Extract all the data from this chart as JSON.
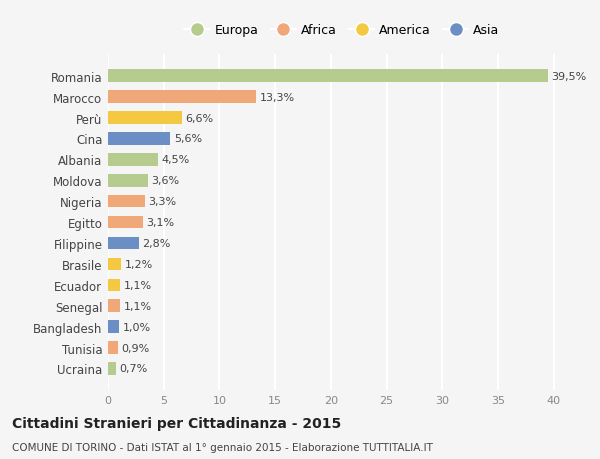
{
  "countries": [
    "Romania",
    "Marocco",
    "Perù",
    "Cina",
    "Albania",
    "Moldova",
    "Nigeria",
    "Egitto",
    "Filippine",
    "Brasile",
    "Ecuador",
    "Senegal",
    "Bangladesh",
    "Tunisia",
    "Ucraina"
  ],
  "values": [
    39.5,
    13.3,
    6.6,
    5.6,
    4.5,
    3.6,
    3.3,
    3.1,
    2.8,
    1.2,
    1.1,
    1.1,
    1.0,
    0.9,
    0.7
  ],
  "labels": [
    "39,5%",
    "13,3%",
    "6,6%",
    "5,6%",
    "4,5%",
    "3,6%",
    "3,3%",
    "3,1%",
    "2,8%",
    "1,2%",
    "1,1%",
    "1,1%",
    "1,0%",
    "0,9%",
    "0,7%"
  ],
  "continents": [
    "Europa",
    "Africa",
    "America",
    "Asia",
    "Europa",
    "Europa",
    "Africa",
    "Africa",
    "Asia",
    "America",
    "America",
    "Africa",
    "Asia",
    "Africa",
    "Europa"
  ],
  "continent_colors": {
    "Europa": "#b5cc8e",
    "Africa": "#f0a878",
    "America": "#f5c842",
    "Asia": "#6b8ec4"
  },
  "legend_order": [
    "Europa",
    "Africa",
    "America",
    "Asia"
  ],
  "title": "Cittadini Stranieri per Cittadinanza - 2015",
  "subtitle": "COMUNE DI TORINO - Dati ISTAT al 1° gennaio 2015 - Elaborazione TUTTITALIA.IT",
  "xlim": [
    0,
    42
  ],
  "xticks": [
    0,
    5,
    10,
    15,
    20,
    25,
    30,
    35,
    40
  ],
  "background_color": "#f5f5f5",
  "grid_color": "#ffffff"
}
